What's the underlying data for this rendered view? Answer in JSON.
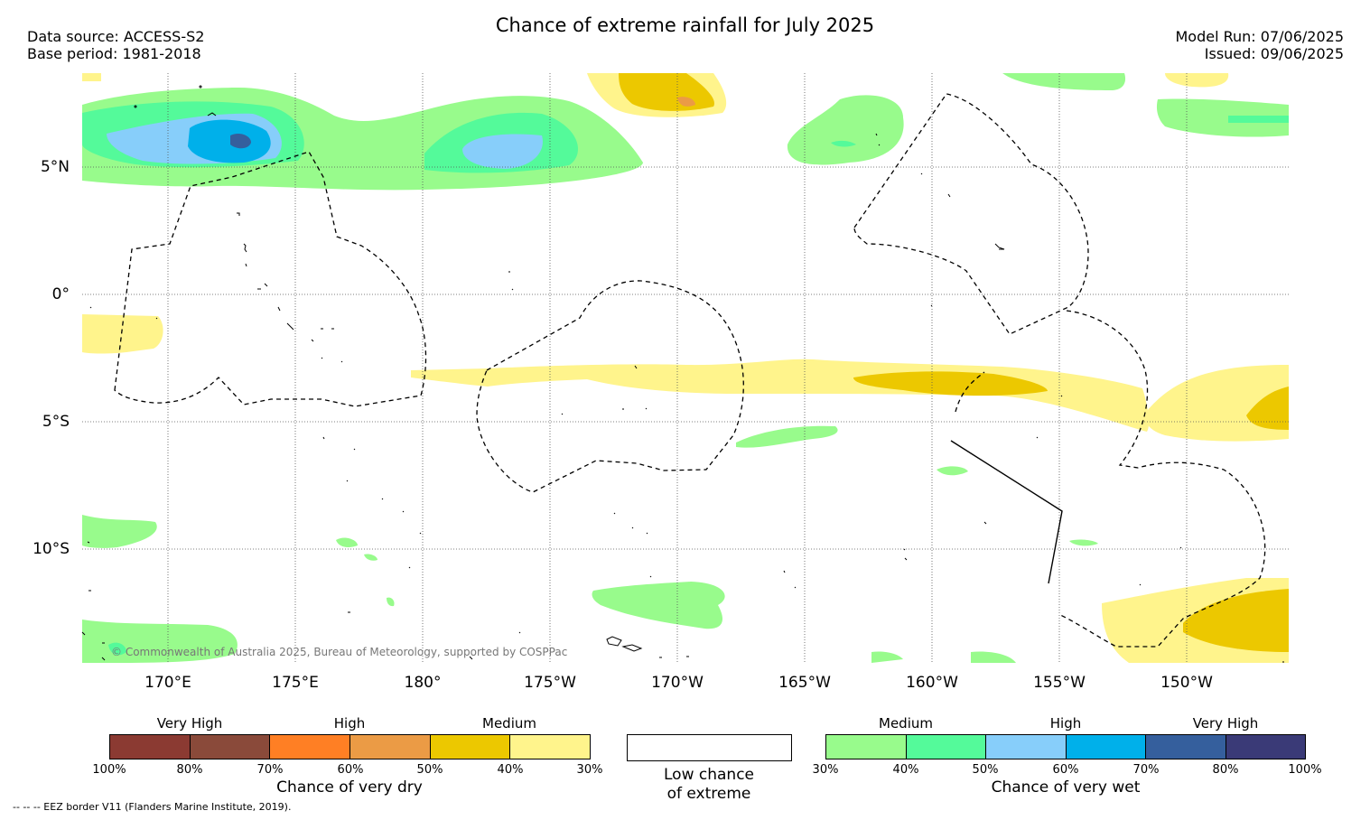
{
  "title": "Chance of extreme rainfall for July 2025",
  "meta": {
    "data_source": "Data source: ACCESS-S2",
    "base_period": "Base period: 1981-2018",
    "model_run": "Model Run: 07/06/2025",
    "issued": "Issued: 09/06/2025"
  },
  "map": {
    "lon_labels": [
      "170°E",
      "175°E",
      "180°",
      "175°W",
      "170°W",
      "165°W",
      "160°W",
      "155°W",
      "150°W"
    ],
    "lat_labels": [
      "5°N",
      "0°",
      "5°S",
      "10°S"
    ],
    "copyright": "© Commonwealth of Australia 2025, Bureau of Meteorology, supported by COSPPac"
  },
  "colors": {
    "dry": [
      "#8b3a32",
      "#8a4a3a",
      "#ff7f24",
      "#eb9b45",
      "#ecc800",
      "#fff48c"
    ],
    "wet": [
      "#98fb8c",
      "#54fa9a",
      "#87cefa",
      "#00b0ea",
      "#355f9d",
      "#3a3a77"
    ]
  },
  "legend": {
    "dry": {
      "headers": [
        "Very High",
        "High",
        "Medium"
      ],
      "ticks": [
        "100%",
        "80%",
        "70%",
        "60%",
        "50%",
        "40%",
        "30%"
      ],
      "caption": "Chance of very dry"
    },
    "neutral": {
      "line1": "Low chance",
      "line2": "of extreme"
    },
    "wet": {
      "headers": [
        "Medium",
        "High",
        "Very High"
      ],
      "ticks": [
        "30%",
        "40%",
        "50%",
        "60%",
        "70%",
        "80%",
        "100%"
      ],
      "caption": "Chance of very wet"
    },
    "eez_note": "-- -- -- EEZ border V11 (Flanders Marine Institute, 2019)."
  }
}
